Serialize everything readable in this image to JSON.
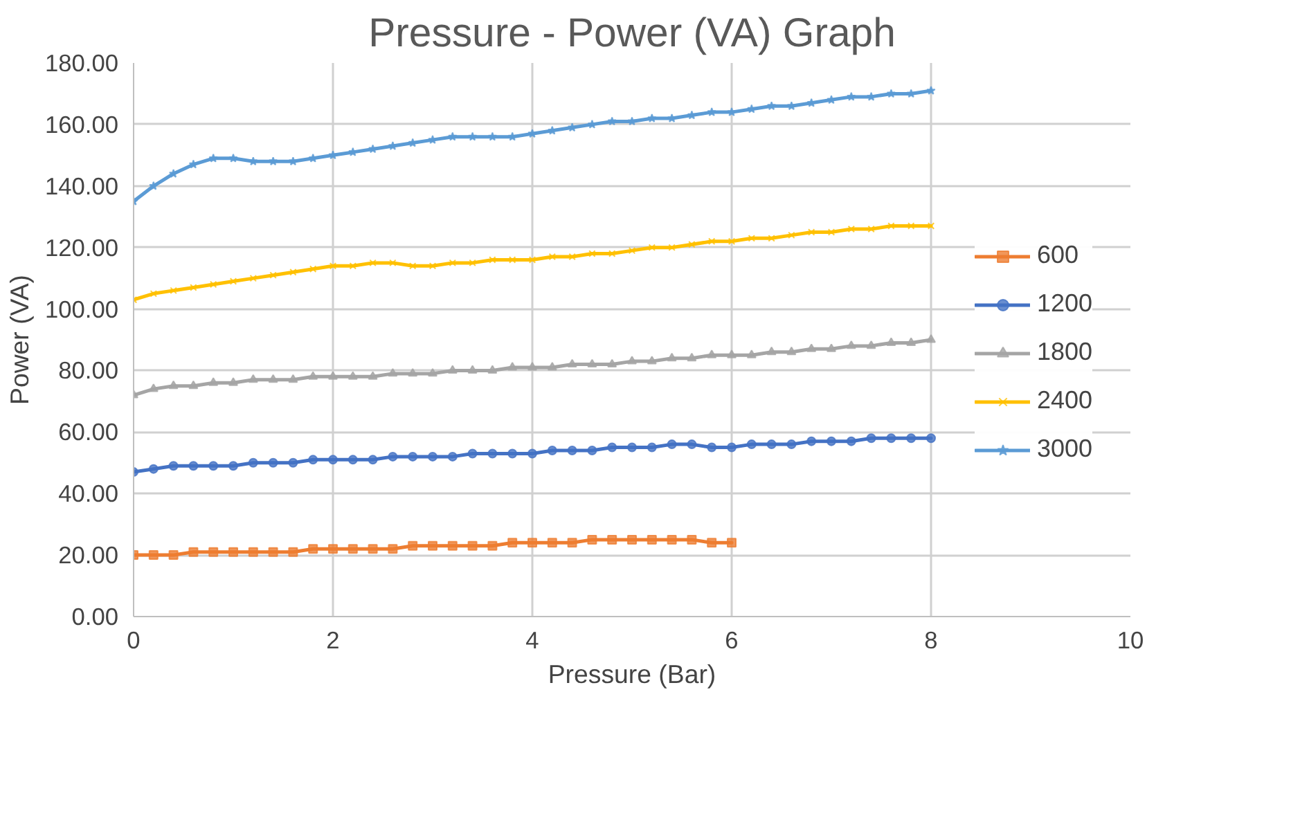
{
  "chart_data": {
    "type": "line",
    "title": "Pressure - Power (VA) Graph",
    "xlabel": "Pressure (Bar)",
    "ylabel": "Power (VA)",
    "xlim": [
      0,
      10
    ],
    "xticks": [
      0,
      2,
      4,
      6,
      8,
      10
    ],
    "ylim": [
      0,
      180
    ],
    "yticks": [
      {
        "value": 0,
        "label": "0.00"
      },
      {
        "value": 20,
        "label": "20.00"
      },
      {
        "value": 40,
        "label": "40.00"
      },
      {
        "value": 60,
        "label": "60.00"
      },
      {
        "value": 80,
        "label": "80.00"
      },
      {
        "value": 100,
        "label": "100.00"
      },
      {
        "value": 120,
        "label": "120.00"
      },
      {
        "value": 140,
        "label": "140.00"
      },
      {
        "value": 160,
        "label": "160.00"
      },
      {
        "value": 180,
        "label": "180.00"
      }
    ],
    "grid": true,
    "legend": "right",
    "series": [
      {
        "name": "600",
        "color": "#ed7d31",
        "marker": "square",
        "x": [
          0,
          0.2,
          0.4,
          0.6,
          0.8,
          1,
          1.2,
          1.4,
          1.6,
          1.8,
          2,
          2.2,
          2.4,
          2.6,
          2.8,
          3,
          3.2,
          3.4,
          3.6,
          3.8,
          4,
          4.2,
          4.4,
          4.6,
          4.8,
          5,
          5.2,
          5.4,
          5.6,
          5.8,
          6
        ],
        "values": [
          20,
          20,
          20,
          21,
          21,
          21,
          21,
          21,
          21,
          22,
          22,
          22,
          22,
          22,
          23,
          23,
          23,
          23,
          23,
          24,
          24,
          24,
          24,
          25,
          25,
          25,
          25,
          25,
          25,
          24,
          24
        ]
      },
      {
        "name": "1200",
        "color": "#4472c4",
        "marker": "circle",
        "values": [
          47,
          48,
          49,
          49,
          49,
          49,
          50,
          50,
          50,
          51,
          51,
          51,
          51,
          52,
          52,
          52,
          52,
          53,
          53,
          53,
          53,
          54,
          54,
          54,
          55,
          55,
          55,
          56,
          56,
          55,
          55,
          56,
          56,
          56,
          57,
          57,
          57,
          58,
          58,
          58,
          58
        ]
      },
      {
        "name": "1800",
        "color": "#a5a5a5",
        "marker": "triangle",
        "values": [
          72,
          74,
          75,
          75,
          76,
          76,
          77,
          77,
          77,
          78,
          78,
          78,
          78,
          79,
          79,
          79,
          80,
          80,
          80,
          81,
          81,
          81,
          82,
          82,
          82,
          83,
          83,
          84,
          84,
          85,
          85,
          85,
          86,
          86,
          87,
          87,
          88,
          88,
          89,
          89,
          90
        ]
      },
      {
        "name": "2400",
        "color": "#ffc000",
        "marker": "cross",
        "values": [
          103,
          105,
          106,
          107,
          108,
          109,
          110,
          111,
          112,
          113,
          114,
          114,
          115,
          115,
          114,
          114,
          115,
          115,
          116,
          116,
          116,
          117,
          117,
          118,
          118,
          119,
          120,
          120,
          121,
          122,
          122,
          123,
          123,
          124,
          125,
          125,
          126,
          126,
          127,
          127,
          127
        ]
      },
      {
        "name": "3000",
        "color": "#5b9bd5",
        "marker": "star",
        "values": [
          135,
          140,
          144,
          147,
          149,
          149,
          148,
          148,
          148,
          149,
          150,
          151,
          152,
          153,
          154,
          155,
          156,
          156,
          156,
          156,
          157,
          158,
          159,
          160,
          161,
          161,
          162,
          162,
          163,
          164,
          164,
          165,
          166,
          166,
          167,
          168,
          169,
          169,
          170,
          170,
          171
        ]
      }
    ],
    "x": [
      0,
      0.2,
      0.4,
      0.6,
      0.8,
      1,
      1.2,
      1.4,
      1.6,
      1.8,
      2,
      2.2,
      2.4,
      2.6,
      2.8,
      3,
      3.2,
      3.4,
      3.6,
      3.8,
      4,
      4.2,
      4.4,
      4.6,
      4.8,
      5,
      5.2,
      5.4,
      5.6,
      5.8,
      6,
      6.2,
      6.4,
      6.6,
      6.8,
      7,
      7.2,
      7.4,
      7.6,
      7.8,
      8
    ]
  }
}
